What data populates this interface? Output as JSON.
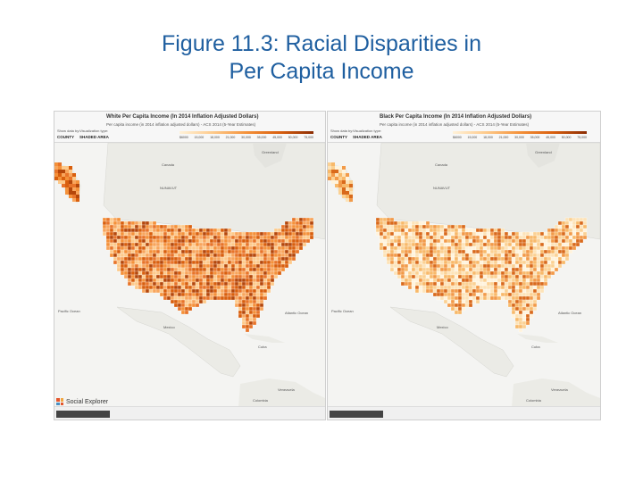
{
  "slide": {
    "title_line1": "Figure 11.3: Racial Disparities in",
    "title_line2": "Per Capita Income"
  },
  "legend_ticks": [
    "$6000",
    "15,000",
    "18,000",
    "21,000",
    "30,000",
    "35,000",
    "45,000",
    "50,000",
    "75,000"
  ],
  "panels": [
    {
      "header_title": "White Per Capita Income (In 2014 Inflation Adjusted Dollars)",
      "header_sub": "Per capita income (in 2014 inflation adjusted dollars) - ACS 2014 (5-Year Estimates)",
      "show_data_by_label": "Show data by:",
      "show_data_by_value": "COUNTY",
      "viz_type_label": "Visualization type:",
      "viz_type_value": "SHADED AREA",
      "color_scheme": "dark"
    },
    {
      "header_title": "Black Per Capita Income (In 2014 Inflation Adjusted Dollars)",
      "header_sub": "Per capita income (in 2014 inflation adjusted dollars) - ACS 2014 (5-Year Estimates)",
      "show_data_by_label": "Show data by:",
      "show_data_by_value": "COUNTY",
      "viz_type_label": "Visualization type:",
      "viz_type_value": "SHADED AREA",
      "color_scheme": "light"
    }
  ],
  "map_labels": {
    "canada": "Canada",
    "greenland": "Greenland",
    "nunavut": "NUNAVUT",
    "pacific": "Pacific Ocean",
    "mexico": "Mexico",
    "cuba": "Cuba",
    "atlantic": "Atlantic Ocean",
    "venezuela": "Venezuela",
    "colombia": "Colombia"
  },
  "brand": "Social Explorer",
  "colors": {
    "title": "#1f5fa0",
    "dark_palette": [
      "#fdc98a",
      "#f8a55c",
      "#f4913a",
      "#e8742a",
      "#d95f0e",
      "#b5470b"
    ],
    "light_palette": [
      "#fff3dc",
      "#fde3b8",
      "#fbd193",
      "#f8b96a",
      "#f29a49",
      "#d96a1c"
    ]
  }
}
